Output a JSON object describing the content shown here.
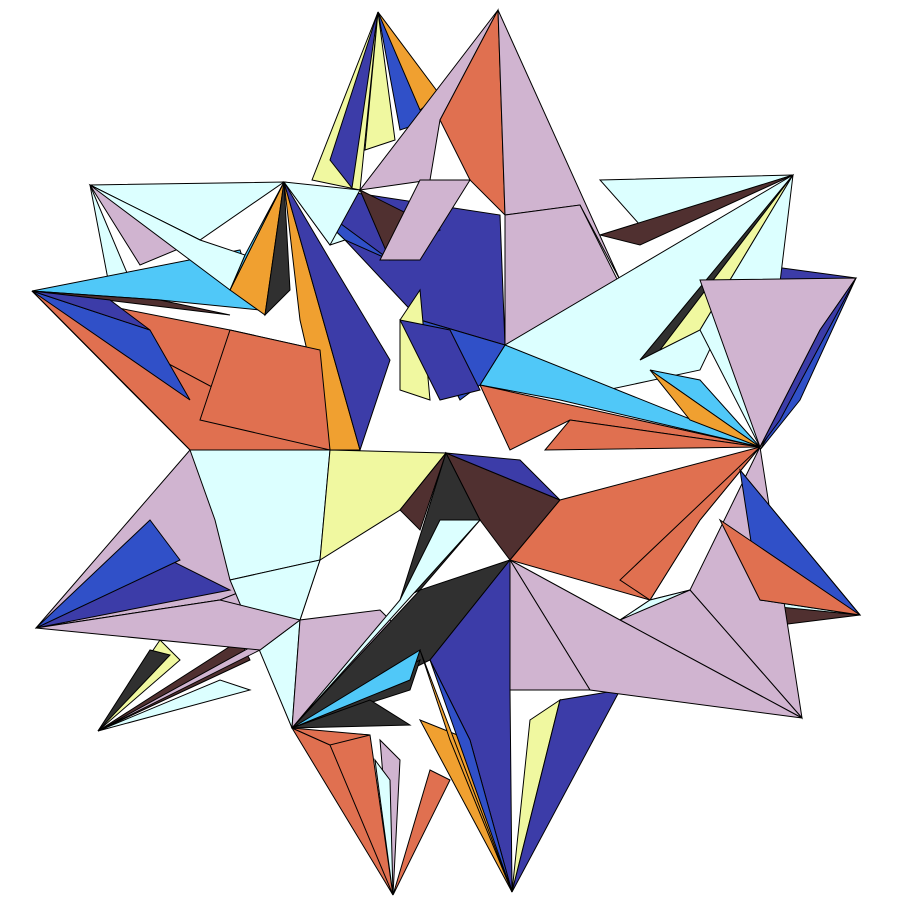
{
  "figure": {
    "subject": "polyhedron",
    "background_color": "#ffffff",
    "edge_color": "#000000"
  },
  "palette": {
    "lilac": "#d0b4d0",
    "orange": "#e07050",
    "blue": "#3c3ca8",
    "royal": "#3050c8",
    "cyan_light": "#dcffff",
    "sky": "#50c8f8",
    "yellow": "#f0f8a0",
    "amber": "#f0a030",
    "maroon": "#503030",
    "charcoal": "#303030"
  }
}
